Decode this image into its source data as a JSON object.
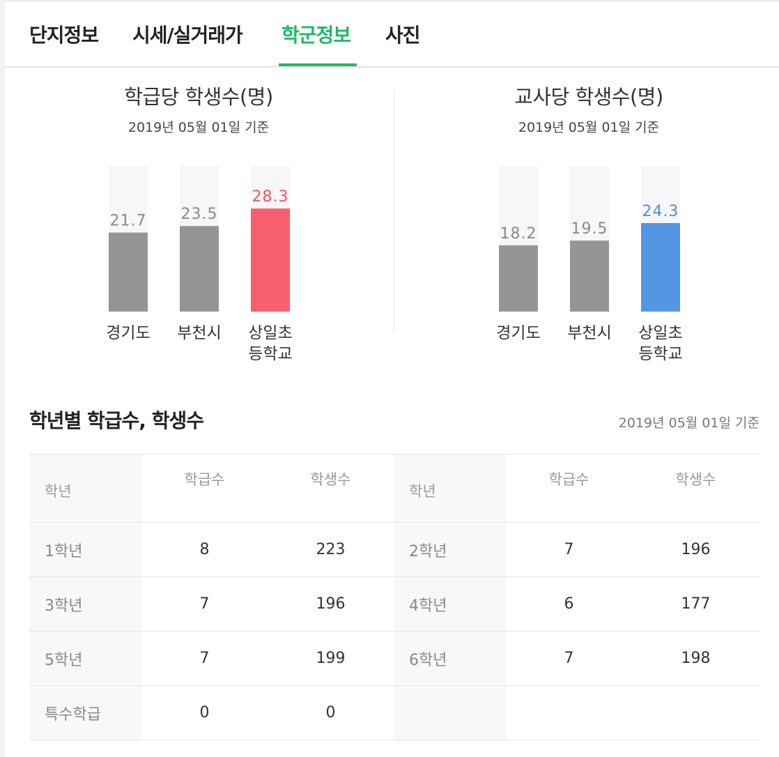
{
  "tabs": [
    {
      "label": "단지정보"
    },
    {
      "label": "시세/실거래가"
    },
    {
      "label": "학군정보"
    },
    {
      "label": "사진"
    }
  ],
  "active_tab": 2,
  "charts": {
    "class": {
      "title": "학급당 학생수(명)",
      "date": "2019년 05월 01일 기준"
    },
    "teacher": {
      "title": "교사당 학생수(명)",
      "date": "2019년 05월 01일 기준"
    }
  },
  "chart_data": [
    {
      "type": "bar",
      "title": "학급당 학생수(명)",
      "subtitle": "2019년 05월 01일 기준",
      "categories": [
        "경기도",
        "부천시",
        "상일초\n등학교"
      ],
      "values": [
        21.7,
        23.5,
        28.3
      ],
      "value_labels": [
        "21.7",
        "23.5",
        "28.3"
      ],
      "colors": [
        "#959595",
        "#959595",
        "#f65f6e"
      ],
      "label_colors": [
        "#8a8a8a",
        "#8a8a8a",
        "#ee5565"
      ],
      "ylim": [
        0,
        40
      ]
    },
    {
      "type": "bar",
      "title": "교사당 학생수(명)",
      "subtitle": "2019년 05월 01일 기준",
      "categories": [
        "경기도",
        "부천시",
        "상일초\n등학교"
      ],
      "values": [
        18.2,
        19.5,
        24.3
      ],
      "value_labels": [
        "18.2",
        "19.5",
        "24.3"
      ],
      "colors": [
        "#959595",
        "#959595",
        "#5496e3"
      ],
      "label_colors": [
        "#8a8a8a",
        "#8a8a8a",
        "#4a90e0"
      ],
      "ylim": [
        0,
        40
      ]
    }
  ],
  "grade_section": {
    "title": "학년별 학급수, 학생수",
    "date": "2019년 05월 01일 기준",
    "headers": [
      "학년",
      "학급수",
      "학생수",
      "학년",
      "학급수",
      "학생수"
    ],
    "rows": [
      [
        "1학년",
        "8",
        "223",
        "2학년",
        "7",
        "196"
      ],
      [
        "3학년",
        "7",
        "196",
        "4학년",
        "6",
        "177"
      ],
      [
        "5학년",
        "7",
        "199",
        "6학년",
        "7",
        "198"
      ],
      [
        "특수학급",
        "0",
        "0",
        "",
        "",
        ""
      ]
    ]
  },
  "colors": {
    "accent": "#1fb964",
    "highlight_red": "#f65f6e",
    "highlight_blue": "#5496e3",
    "neutral_bar": "#959595"
  }
}
